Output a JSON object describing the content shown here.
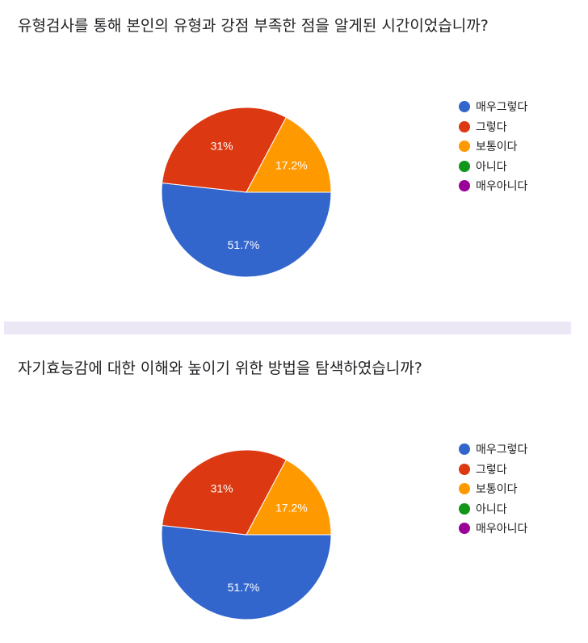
{
  "legend_colors": [
    "#3366cc",
    "#dc3912",
    "#ff9900",
    "#109618",
    "#990099"
  ],
  "chart_data": [
    {
      "type": "pie",
      "title": "유형검사를 통해 본인의 유형과 강점 부족한 점을 알게된 시간이었습니까?",
      "categories": [
        "매우그렇다",
        "그렇다",
        "보통이다",
        "아니다",
        "매우아니다"
      ],
      "values": [
        51.7,
        31,
        17.2,
        0,
        0
      ],
      "labels": [
        "51.7%",
        "31%",
        "17.2%",
        "",
        ""
      ],
      "legend": "right"
    },
    {
      "type": "pie",
      "title": "자기효능감에 대한 이해와 높이기 위한 방법을 탐색하였습니까?",
      "categories": [
        "매우그렇다",
        "그렇다",
        "보통이다",
        "아니다",
        "매우아니다"
      ],
      "values": [
        51.7,
        31,
        17.2,
        0,
        0
      ],
      "labels": [
        "51.7%",
        "31%",
        "17.2%",
        "",
        ""
      ],
      "legend": "right"
    }
  ]
}
